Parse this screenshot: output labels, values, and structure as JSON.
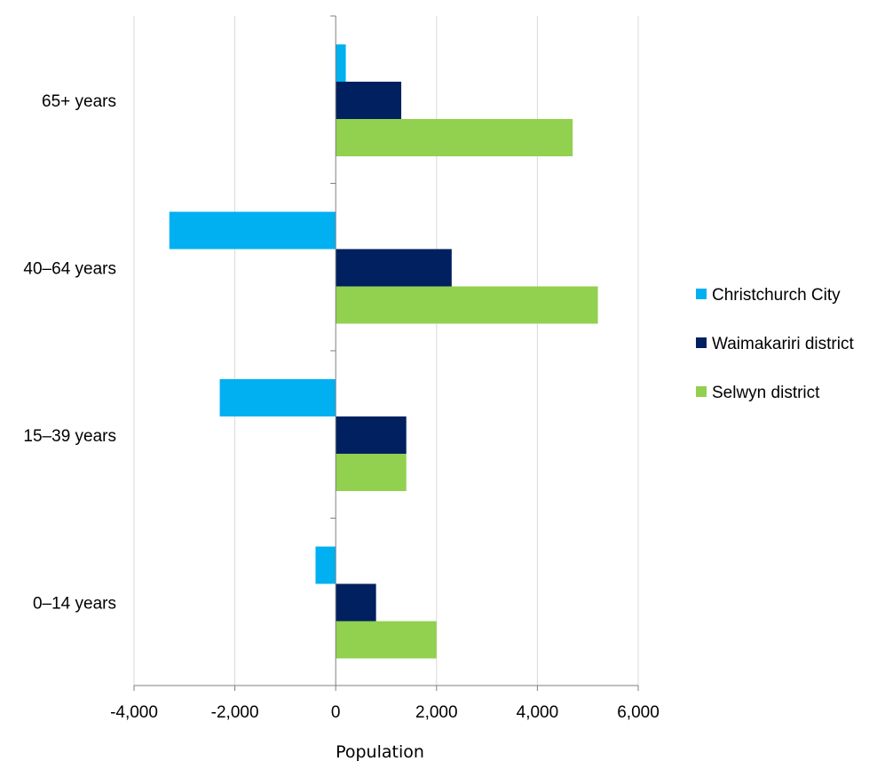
{
  "chart_data": {
    "type": "bar",
    "orientation": "horizontal",
    "categories": [
      "0–14 years",
      "15–39 years",
      "40–64 years",
      "65+ years"
    ],
    "series": [
      {
        "name": "Christchurch City",
        "values": [
          -400,
          -2300,
          -3300,
          200
        ],
        "color": "#00b0f0"
      },
      {
        "name": "Waimakariri district",
        "values": [
          800,
          1400,
          2300,
          1300
        ],
        "color": "#002060"
      },
      {
        "name": "Selwyn district",
        "values": [
          2000,
          1400,
          5200,
          4700
        ],
        "color": "#92d050"
      }
    ],
    "xlabel": "Population",
    "ylabel": "",
    "xlim": [
      -4000,
      6000
    ],
    "xticks": [
      "-4,000",
      "-2,000",
      "0",
      "2,000",
      "4,000",
      "6,000"
    ],
    "xtick_values": [
      -4000,
      -2000,
      0,
      2000,
      4000,
      6000
    ],
    "grid": true,
    "legend_position": "right",
    "grid_color": "#d9d9d9",
    "axis_color": "#7f7f7f"
  }
}
